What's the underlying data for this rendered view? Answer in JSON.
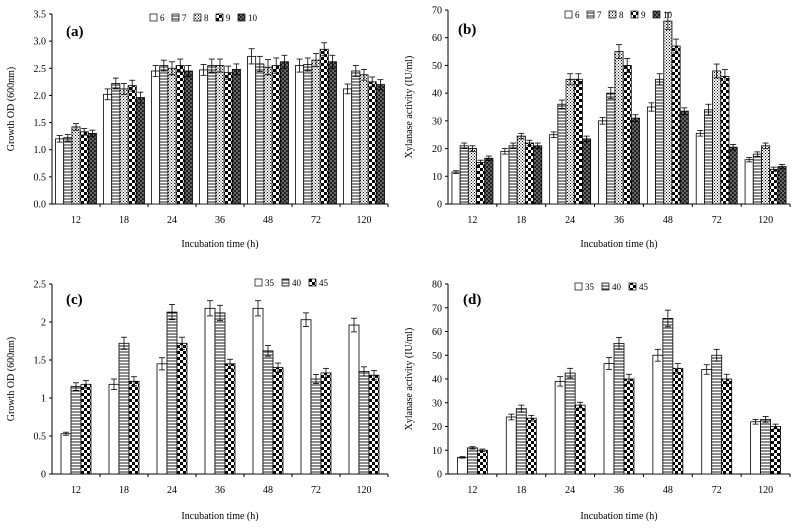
{
  "chart_data": [
    {
      "type": "bar",
      "panel_label": "(a)",
      "ylabel": "Growth OD (600nm)",
      "xlabel": "Incubation time (h)",
      "categories": [
        "12",
        "18",
        "24",
        "36",
        "48",
        "72",
        "120"
      ],
      "ylim": [
        0,
        3.5
      ],
      "yticks": [
        "0.0",
        "0.5",
        "1.0",
        "1.5",
        "2.0",
        "2.5",
        "3.0",
        "3.5"
      ],
      "legend_position": "top-right",
      "series": [
        {
          "name": "6",
          "pattern": "white",
          "values": [
            1.2,
            2.02,
            2.45,
            2.47,
            2.72,
            2.55,
            2.12
          ],
          "errors": [
            0.06,
            0.1,
            0.1,
            0.1,
            0.14,
            0.12,
            0.09
          ]
        },
        {
          "name": "7",
          "pattern": "hlines",
          "values": [
            1.22,
            2.22,
            2.55,
            2.55,
            2.58,
            2.57,
            2.45
          ],
          "errors": [
            0.06,
            0.1,
            0.1,
            0.12,
            0.14,
            0.12,
            0.1
          ]
        },
        {
          "name": "8",
          "pattern": "dots",
          "values": [
            1.42,
            2.12,
            2.5,
            2.55,
            2.52,
            2.65,
            2.38
          ],
          "errors": [
            0.06,
            0.1,
            0.12,
            0.12,
            0.14,
            0.12,
            0.1
          ]
        },
        {
          "name": "9",
          "pattern": "checker",
          "values": [
            1.33,
            2.18,
            2.55,
            2.42,
            2.55,
            2.85,
            2.25
          ],
          "errors": [
            0.06,
            0.1,
            0.12,
            0.12,
            0.14,
            0.12,
            0.09
          ]
        },
        {
          "name": "10",
          "pattern": "darkchecker",
          "values": [
            1.3,
            1.96,
            2.45,
            2.48,
            2.62,
            2.62,
            2.2
          ],
          "errors": [
            0.06,
            0.1,
            0.1,
            0.1,
            0.12,
            0.12,
            0.09
          ]
        }
      ]
    },
    {
      "type": "bar",
      "panel_label": "(b)",
      "ylabel": "Xylanase activity (IU/ml)",
      "xlabel": "Incubation time (h)",
      "categories": [
        "12",
        "18",
        "24",
        "36",
        "48",
        "72",
        "120"
      ],
      "ylim": [
        0,
        70
      ],
      "yticks": [
        "0",
        "10",
        "20",
        "30",
        "40",
        "50",
        "60",
        "70"
      ],
      "legend_position": "top-right",
      "series": [
        {
          "name": "6",
          "pattern": "white",
          "values": [
            11.5,
            19,
            25,
            30,
            35,
            25.5,
            16
          ],
          "errors": [
            0.5,
            1,
            1,
            1.2,
            1.5,
            1,
            0.8
          ]
        },
        {
          "name": "7",
          "pattern": "hlines",
          "values": [
            21,
            21,
            36,
            40,
            45,
            34,
            18
          ],
          "errors": [
            1,
            1,
            1.5,
            2,
            2,
            2,
            0.8
          ]
        },
        {
          "name": "8",
          "pattern": "dots",
          "values": [
            20,
            24.5,
            45,
            55,
            66,
            48,
            21
          ],
          "errors": [
            1,
            1,
            2,
            2.5,
            3,
            2.5,
            1
          ]
        },
        {
          "name": "9",
          "pattern": "checker",
          "values": [
            15,
            22,
            45,
            50,
            57,
            46,
            12.5
          ],
          "errors": [
            0.8,
            1,
            2,
            2.5,
            2.5,
            2.5,
            0.8
          ]
        },
        {
          "name": "10",
          "pattern": "darkchecker",
          "values": [
            16.5,
            21,
            23.5,
            31,
            33.5,
            20.5,
            13.5
          ],
          "errors": [
            0.8,
            1,
            1,
            1.2,
            1.2,
            1,
            0.8
          ]
        }
      ]
    },
    {
      "type": "bar",
      "panel_label": "(c)",
      "ylabel": "Growth OD (600nm)",
      "xlabel": "Incubation time (h)",
      "categories": [
        "12",
        "18",
        "24",
        "36",
        "48",
        "72",
        "120"
      ],
      "ylim": [
        0,
        2.5
      ],
      "yticks": [
        "0",
        "0.5",
        "1",
        "1.5",
        "2",
        "2.5"
      ],
      "legend_position": "top-right",
      "series": [
        {
          "name": "35",
          "pattern": "white",
          "values": [
            0.53,
            1.18,
            1.45,
            2.18,
            2.18,
            2.03,
            1.96
          ],
          "errors": [
            0.02,
            0.07,
            0.08,
            0.1,
            0.1,
            0.09,
            0.09
          ]
        },
        {
          "name": "40",
          "pattern": "hlines",
          "values": [
            1.15,
            1.72,
            2.13,
            2.12,
            1.62,
            1.25,
            1.35
          ],
          "errors": [
            0.05,
            0.08,
            0.1,
            0.1,
            0.07,
            0.06,
            0.06
          ]
        },
        {
          "name": "45",
          "pattern": "checker",
          "values": [
            1.18,
            1.22,
            1.72,
            1.45,
            1.4,
            1.33,
            1.3
          ],
          "errors": [
            0.05,
            0.06,
            0.08,
            0.06,
            0.06,
            0.06,
            0.06
          ]
        }
      ]
    },
    {
      "type": "bar",
      "panel_label": "(d)",
      "ylabel": "Xylanase activity (IU/ml)",
      "xlabel": "Incubation time (h)",
      "categories": [
        "12",
        "18",
        "24",
        "36",
        "48",
        "72",
        "120"
      ],
      "ylim": [
        0,
        80
      ],
      "yticks": [
        "0",
        "10",
        "20",
        "30",
        "40",
        "50",
        "60",
        "70",
        "80"
      ],
      "legend_position": "top-right",
      "series": [
        {
          "name": "35",
          "pattern": "white",
          "values": [
            7,
            24,
            39,
            46.5,
            50,
            44,
            22
          ],
          "errors": [
            0.3,
            1.2,
            2,
            2.5,
            2.5,
            2,
            1
          ]
        },
        {
          "name": "40",
          "pattern": "hlines",
          "values": [
            11,
            27.5,
            42.5,
            55,
            65.5,
            50,
            23
          ],
          "errors": [
            0.5,
            1.5,
            2,
            2.5,
            3.5,
            2.5,
            1.2
          ]
        },
        {
          "name": "45",
          "pattern": "checker",
          "values": [
            10,
            23.5,
            29,
            40,
            44.5,
            40,
            20
          ],
          "errors": [
            0.5,
            1.2,
            1.2,
            2,
            2,
            2,
            1
          ]
        }
      ]
    }
  ]
}
